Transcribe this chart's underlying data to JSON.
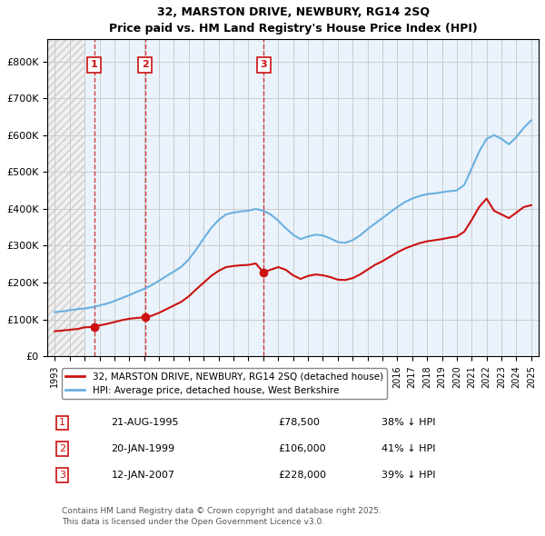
{
  "title": "32, MARSTON DRIVE, NEWBURY, RG14 2SQ",
  "subtitle": "Price paid vs. HM Land Registry's House Price Index (HPI)",
  "footer": "Contains HM Land Registry data © Crown copyright and database right 2025.\nThis data is licensed under the Open Government Licence v3.0.",
  "legend_line1": "32, MARSTON DRIVE, NEWBURY, RG14 2SQ (detached house)",
  "legend_line2": "HPI: Average price, detached house, West Berkshire",
  "transactions": [
    {
      "num": 1,
      "date": "21-AUG-1995",
      "price": 78500,
      "pct": "38% ↓ HPI",
      "year": 1995.64
    },
    {
      "num": 2,
      "date": "20-JAN-1999",
      "price": 106000,
      "pct": "41% ↓ HPI",
      "year": 1999.05
    },
    {
      "num": 3,
      "date": "12-JAN-2007",
      "price": 228000,
      "pct": "39% ↓ HPI",
      "year": 2007.04
    }
  ],
  "hpi_color": "#6ab0e0",
  "price_color": "#cc1111",
  "hatch_color": "#dddddd",
  "grid_color": "#cccccc",
  "bg_color": "#eaf3fb",
  "hatch_bg": "#f5f5f5",
  "ylim": [
    0,
    860000
  ],
  "yticks": [
    0,
    100000,
    200000,
    300000,
    400000,
    500000,
    600000,
    700000,
    800000
  ],
  "xlim_left": 1992.5,
  "xlim_right": 2025.5,
  "hpi_years": [
    1993,
    1993.5,
    1994,
    1994.5,
    1995,
    1995.5,
    1996,
    1996.5,
    1997,
    1997.5,
    1998,
    1998.5,
    1999,
    1999.5,
    2000,
    2000.5,
    2001,
    2001.5,
    2002,
    2002.5,
    2003,
    2003.5,
    2004,
    2004.5,
    2005,
    2005.5,
    2006,
    2006.5,
    2007,
    2007.5,
    2008,
    2008.5,
    2009,
    2009.5,
    2010,
    2010.5,
    2011,
    2011.5,
    2012,
    2012.5,
    2013,
    2013.5,
    2014,
    2014.5,
    2015,
    2015.5,
    2016,
    2016.5,
    2017,
    2017.5,
    2018,
    2018.5,
    2019,
    2019.5,
    2020,
    2020.5,
    2021,
    2021.5,
    2022,
    2022.5,
    2023,
    2023.5,
    2024,
    2024.5,
    2025
  ],
  "hpi_values": [
    120000,
    122000,
    125000,
    128000,
    130000,
    133000,
    138000,
    143000,
    150000,
    158000,
    166000,
    175000,
    183000,
    193000,
    205000,
    218000,
    230000,
    243000,
    263000,
    290000,
    320000,
    348000,
    370000,
    385000,
    390000,
    393000,
    395000,
    400000,
    395000,
    385000,
    368000,
    348000,
    330000,
    318000,
    325000,
    330000,
    328000,
    320000,
    310000,
    308000,
    315000,
    328000,
    345000,
    360000,
    375000,
    390000,
    405000,
    418000,
    428000,
    435000,
    440000,
    442000,
    445000,
    448000,
    450000,
    465000,
    510000,
    555000,
    590000,
    600000,
    590000,
    575000,
    595000,
    620000,
    640000
  ],
  "price_years": [
    1993,
    1993.5,
    1994,
    1994.5,
    1995,
    1995.5,
    1996,
    1996.5,
    1997,
    1997.5,
    1998,
    1998.5,
    1999,
    1999.5,
    2000,
    2000.5,
    2001,
    2001.5,
    2002,
    2002.5,
    2003,
    2003.5,
    2004,
    2004.5,
    2005,
    2005.5,
    2006,
    2006.5,
    2007,
    2007.5,
    2008,
    2008.5,
    2009,
    2009.5,
    2010,
    2010.5,
    2011,
    2011.5,
    2012,
    2012.5,
    2013,
    2013.5,
    2014,
    2014.5,
    2015,
    2015.5,
    2016,
    2016.5,
    2017,
    2017.5,
    2018,
    2018.5,
    2019,
    2019.5,
    2020,
    2020.5,
    2021,
    2021.5,
    2022,
    2022.5,
    2023,
    2023.5,
    2024,
    2024.5,
    2025
  ],
  "price_values": [
    68000,
    70000,
    72000,
    74000,
    78500,
    80000,
    84000,
    88000,
    93000,
    98000,
    102000,
    104000,
    106000,
    110000,
    118000,
    128000,
    138000,
    148000,
    163000,
    182000,
    200000,
    218000,
    232000,
    242000,
    245000,
    247000,
    248000,
    252000,
    228000,
    235000,
    242000,
    235000,
    220000,
    210000,
    218000,
    222000,
    220000,
    215000,
    208000,
    207000,
    212000,
    222000,
    235000,
    248000,
    258000,
    270000,
    282000,
    292000,
    300000,
    307000,
    312000,
    315000,
    318000,
    322000,
    325000,
    338000,
    370000,
    405000,
    428000,
    395000,
    385000,
    375000,
    390000,
    405000,
    410000
  ]
}
